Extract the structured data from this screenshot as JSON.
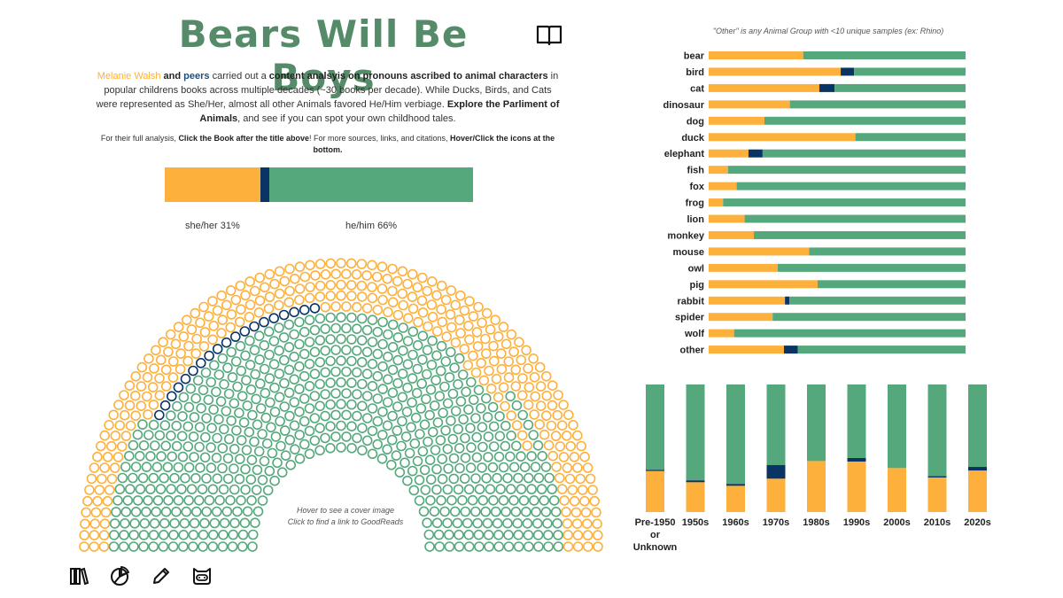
{
  "header": {
    "title": "Bears Will Be Boys",
    "book_icon": "book-icon"
  },
  "intro": {
    "author": "Melanie Walsh",
    "and1": " and ",
    "peers": "peers",
    "t1": " carried out a ",
    "b1": "content analsyis on pronouns ascribed to animal characters",
    "t2": " in popular childrens books across multiple decades (~30 books per decade). While Ducks, Birds, and Cats were represented as She/Her, almost all other Animals favored He/Him verbiage. ",
    "b2": "Explore the Parliment of Animals",
    "t3": ", and see if you can spot your own childhood tales."
  },
  "note": {
    "t1": "For their full analysis, ",
    "b1": "Click the Book after the title above",
    "t2": "! For more sources, links, and citations, ",
    "b2": "Hover/Click the icons at the bottom."
  },
  "colors": {
    "she": "#FDB03B",
    "they": "#0A3463",
    "he": "#55A87B",
    "title": "#558B68"
  },
  "overall": {
    "she_pct": 31,
    "other_pct": 3,
    "he_pct": 66,
    "she_label": "she/her 31%",
    "he_label": "he/him 66%"
  },
  "parliament": {
    "hover_line1": "Hover to see a cover image",
    "hover_line2": "Click to find a link to GoodReads"
  },
  "bottom_icons": [
    "books-icon",
    "pie-chart-icon",
    "pencil-icon",
    "bot-face-icon"
  ],
  "chart_data": [
    {
      "type": "bar",
      "orientation": "horizontal-stacked-100",
      "title": "\"Other\" is any Animal Group with <10 unique samples (ex: Rhino)",
      "categories": [
        "bear",
        "bird",
        "cat",
        "dinosaur",
        "dog",
        "duck",
        "elephant",
        "fish",
        "fox",
        "frog",
        "lion",
        "monkey",
        "mouse",
        "owl",
        "pig",
        "rabbit",
        "spider",
        "wolf",
        "other"
      ],
      "series": [
        {
          "name": "she/her",
          "values": [
            36.8,
            51.4,
            43.1,
            31.6,
            21.7,
            57.1,
            15.5,
            7.5,
            10.9,
            5.6,
            14.0,
            17.6,
            39.1,
            26.9,
            42.4,
            29.7,
            24.9,
            9.9,
            29.3
          ]
        },
        {
          "name": "other",
          "values": [
            0,
            5.2,
            5.9,
            0,
            0,
            0,
            5.5,
            0,
            0,
            0,
            0,
            0,
            0,
            0,
            0,
            1.7,
            0,
            0,
            5.4
          ]
        },
        {
          "name": "he/him",
          "values": [
            63.2,
            43.4,
            51.0,
            68.4,
            78.3,
            42.9,
            79.0,
            92.5,
            89.1,
            94.4,
            86.0,
            82.4,
            60.9,
            73.1,
            57.6,
            68.6,
            75.1,
            90.1,
            65.3
          ]
        }
      ],
      "xlim": [
        0,
        100
      ]
    },
    {
      "type": "bar",
      "orientation": "vertical-stacked-100",
      "title": "",
      "categories": [
        "Pre-1950 or Unknown",
        "1950s",
        "1960s",
        "1970s",
        "1980s",
        "1990s",
        "2000s",
        "2010s",
        "2020s"
      ],
      "series": [
        {
          "name": "she/her",
          "values": [
            32.2,
            23.4,
            20.6,
            26.2,
            40.0,
            39.6,
            34.5,
            27.1,
            32.6
          ]
        },
        {
          "name": "other",
          "values": [
            1.0,
            1.5,
            1.5,
            10.6,
            0,
            2.8,
            0,
            1.0,
            2.8
          ]
        },
        {
          "name": "he/him",
          "values": [
            66.8,
            75.1,
            77.9,
            63.2,
            60.0,
            57.6,
            65.5,
            71.9,
            64.6
          ]
        }
      ],
      "ylim": [
        0,
        100
      ]
    }
  ]
}
